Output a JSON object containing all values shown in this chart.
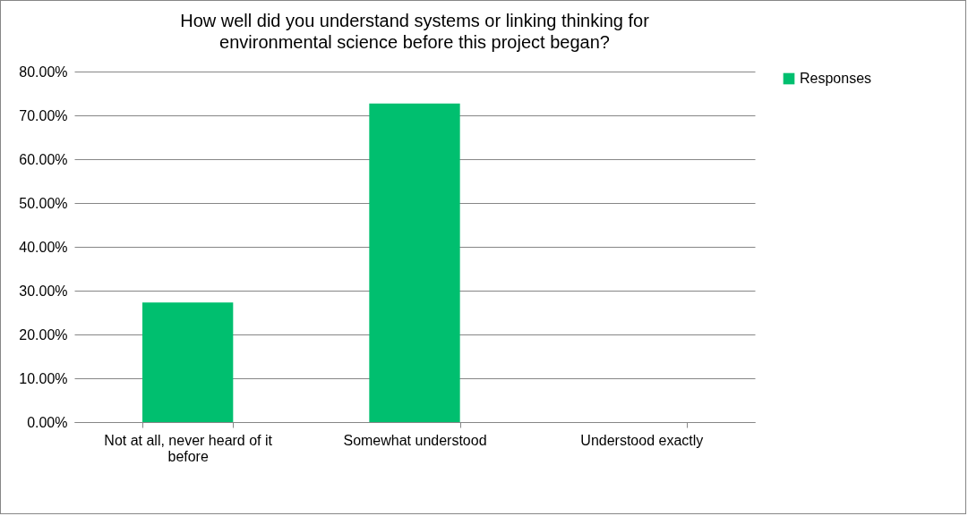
{
  "chart_data": {
    "type": "bar",
    "title": "How well did you understand systems or linking thinking for environmental science before this project began?",
    "categories": [
      "Not at all, never heard of it before",
      "Somewhat understood",
      "Understood exactly"
    ],
    "series": [
      {
        "name": "Responses",
        "color": "#00bf6f",
        "values": [
          27.3,
          72.7,
          0
        ]
      }
    ],
    "ylim": [
      0,
      80
    ],
    "yticks": [
      {
        "value": 0,
        "label": "0.00%"
      },
      {
        "value": 10,
        "label": "10.00%"
      },
      {
        "value": 20,
        "label": "20.00%"
      },
      {
        "value": 30,
        "label": "30.00%"
      },
      {
        "value": 40,
        "label": "40.00%"
      },
      {
        "value": 50,
        "label": "50.00%"
      },
      {
        "value": 60,
        "label": "60.00%"
      },
      {
        "value": 70,
        "label": "70.00%"
      },
      {
        "value": 80,
        "label": "80.00%"
      }
    ],
    "grid": "y",
    "legend": "right"
  }
}
